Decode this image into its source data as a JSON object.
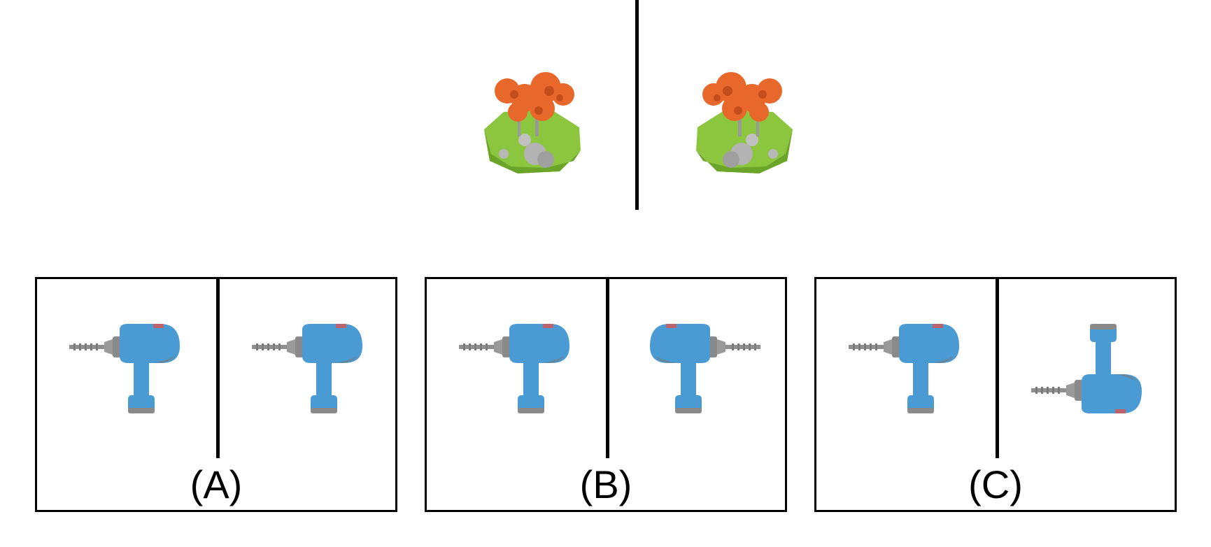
{
  "reference": {
    "object_left": "tree-island",
    "object_right": "tree-island-mirrored"
  },
  "options": [
    {
      "label": "(A)",
      "left_object": "drill",
      "right_object": "drill"
    },
    {
      "label": "(B)",
      "left_object": "drill",
      "right_object": "drill-mirrored"
    },
    {
      "label": "(C)",
      "left_object": "drill",
      "right_object": "drill-rotated"
    }
  ],
  "colors": {
    "foliage": "#e8672a",
    "grass": "#8cc63f",
    "rock": "#a9a9a9",
    "drill_body": "#4a9ad4",
    "drill_metal": "#8f8f8f",
    "drill_accent": "#d9534f"
  }
}
